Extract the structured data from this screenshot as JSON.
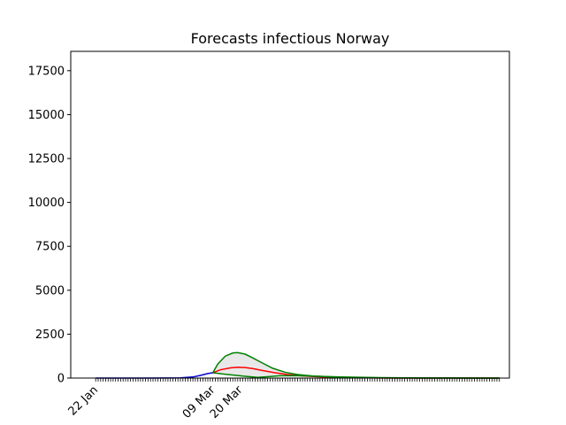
{
  "chart_data": {
    "type": "line",
    "title": "Forecasts infectious Norway",
    "xlabel": "",
    "ylabel": "",
    "ylim": [
      0,
      18600
    ],
    "y_ticks": [
      0,
      2500,
      5000,
      7500,
      10000,
      12500,
      15000,
      17500
    ],
    "y_tick_labels": [
      "0",
      "2500",
      "5000",
      "7500",
      "10000",
      "12500",
      "15000",
      "17500"
    ],
    "x_ticks": [
      {
        "date": "2020-01-22",
        "label": "22 Jan"
      },
      {
        "date": "2020-03-09",
        "label": "09 Mar"
      },
      {
        "date": "2020-03-20",
        "label": "20 Mar"
      }
    ],
    "x_range": [
      "2020-01-12",
      "2020-07-06"
    ],
    "minor_tick_range": [
      "2020-01-22",
      "2020-07-02"
    ],
    "grid": false,
    "legend": "none",
    "series": [
      {
        "color": "#0000cc",
        "points": [
          [
            "2020-01-22",
            0
          ],
          [
            "2020-02-10",
            0
          ],
          [
            "2020-02-20",
            5
          ],
          [
            "2020-02-25",
            15
          ],
          [
            "2020-03-01",
            60
          ],
          [
            "2020-03-04",
            150
          ],
          [
            "2020-03-07",
            260
          ],
          [
            "2020-03-09",
            300
          ]
        ]
      },
      {
        "color": "#ff0000",
        "points": [
          [
            "2020-03-09",
            300
          ],
          [
            "2020-03-12",
            470
          ],
          [
            "2020-03-16",
            580
          ],
          [
            "2020-03-19",
            620
          ],
          [
            "2020-03-22",
            600
          ],
          [
            "2020-03-25",
            540
          ],
          [
            "2020-03-29",
            430
          ],
          [
            "2020-04-03",
            300
          ],
          [
            "2020-04-08",
            200
          ],
          [
            "2020-04-14",
            120
          ],
          [
            "2020-04-22",
            60
          ],
          [
            "2020-05-02",
            25
          ],
          [
            "2020-05-15",
            8
          ],
          [
            "2020-06-05",
            2
          ],
          [
            "2020-07-02",
            0
          ]
        ]
      },
      {
        "color": "#008000",
        "points": [
          [
            "2020-03-09",
            300
          ],
          [
            "2020-03-11",
            800
          ],
          [
            "2020-03-14",
            1250
          ],
          [
            "2020-03-17",
            1430
          ],
          [
            "2020-03-19",
            1450
          ],
          [
            "2020-03-22",
            1360
          ],
          [
            "2020-03-25",
            1150
          ],
          [
            "2020-03-29",
            850
          ],
          [
            "2020-04-02",
            560
          ],
          [
            "2020-04-07",
            330
          ],
          [
            "2020-04-12",
            200
          ],
          [
            "2020-04-18",
            120
          ],
          [
            "2020-04-26",
            60
          ],
          [
            "2020-05-05",
            25
          ],
          [
            "2020-05-20",
            8
          ],
          [
            "2020-06-10",
            2
          ],
          [
            "2020-07-02",
            0
          ]
        ]
      },
      {
        "color": "#008000",
        "points": [
          [
            "2020-03-09",
            300
          ],
          [
            "2020-03-15",
            200
          ],
          [
            "2020-03-22",
            100
          ],
          [
            "2020-03-27",
            40
          ],
          [
            "2020-04-01",
            90
          ],
          [
            "2020-04-05",
            130
          ],
          [
            "2020-04-10",
            140
          ],
          [
            "2020-04-16",
            120
          ],
          [
            "2020-04-23",
            90
          ],
          [
            "2020-05-02",
            55
          ],
          [
            "2020-05-15",
            25
          ],
          [
            "2020-06-01",
            8
          ],
          [
            "2020-07-02",
            0
          ]
        ]
      }
    ],
    "band": {
      "fill": "#d9d9d9",
      "upper_series": 2,
      "lower_series": 3
    }
  }
}
